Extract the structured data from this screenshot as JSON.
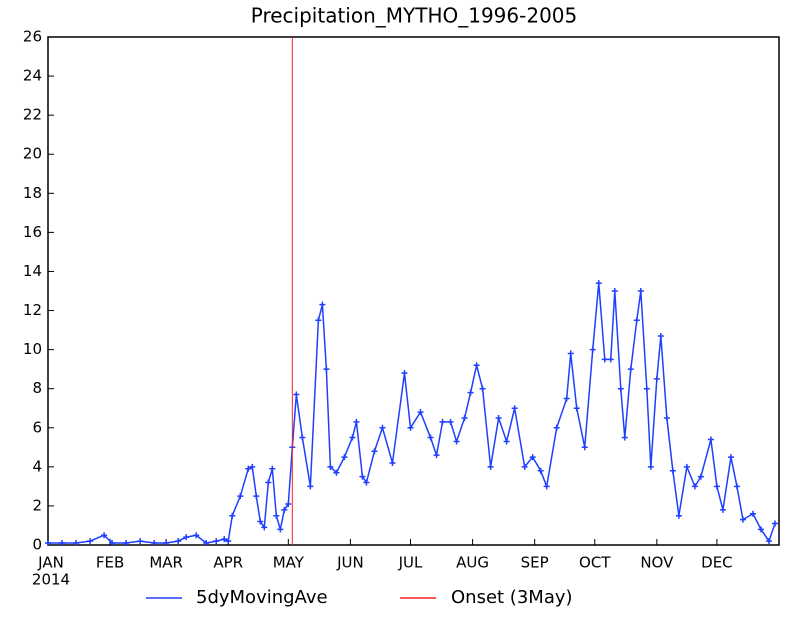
{
  "chart_data": {
    "type": "line",
    "title": "Precipitation_MYTHO_1996-2005",
    "year_label": "2014",
    "xlim": [
      1,
      366
    ],
    "xticks": [
      {
        "value": 1,
        "label": "JAN"
      },
      {
        "value": 32,
        "label": "FEB"
      },
      {
        "value": 60,
        "label": "MAR"
      },
      {
        "value": 91,
        "label": "APR"
      },
      {
        "value": 121,
        "label": "MAY"
      },
      {
        "value": 152,
        "label": "JUN"
      },
      {
        "value": 182,
        "label": "JUL"
      },
      {
        "value": 213,
        "label": "AUG"
      },
      {
        "value": 244,
        "label": "SEP"
      },
      {
        "value": 274,
        "label": "OCT"
      },
      {
        "value": 305,
        "label": "NOV"
      },
      {
        "value": 335,
        "label": "DEC"
      }
    ],
    "ylim": [
      0,
      26
    ],
    "yticks": [
      0,
      2,
      4,
      6,
      8,
      10,
      12,
      14,
      16,
      18,
      20,
      22,
      24,
      26
    ],
    "x": [
      1,
      8,
      15,
      22,
      29,
      33,
      40,
      47,
      54,
      60,
      66,
      70,
      75,
      80,
      85,
      89,
      91,
      93,
      97,
      101,
      103,
      105,
      107,
      109,
      111,
      113,
      115,
      117,
      119,
      121,
      123,
      125,
      128,
      132,
      136,
      138,
      140,
      142,
      145,
      149,
      153,
      155,
      158,
      160,
      164,
      168,
      173,
      179,
      182,
      187,
      192,
      195,
      198,
      202,
      205,
      209,
      212,
      215,
      218,
      222,
      226,
      230,
      234,
      239,
      243,
      247,
      250,
      255,
      260,
      262,
      265,
      269,
      273,
      276,
      279,
      282,
      284,
      287,
      289,
      292,
      295,
      297,
      300,
      302,
      305,
      307,
      310,
      313,
      316,
      320,
      324,
      327,
      332,
      335,
      338,
      342,
      345,
      348,
      353,
      357,
      361,
      364
    ],
    "series": [
      {
        "name": "5dyMovingAve",
        "color": "#1f3fff",
        "values": [
          0.1,
          0.1,
          0.1,
          0.2,
          0.5,
          0.1,
          0.1,
          0.2,
          0.1,
          0.1,
          0.2,
          0.4,
          0.5,
          0.1,
          0.2,
          0.3,
          0.2,
          1.5,
          2.5,
          3.9,
          4.0,
          2.5,
          1.2,
          0.9,
          3.2,
          3.9,
          1.5,
          0.8,
          1.8,
          2.1,
          5.0,
          7.7,
          5.5,
          3.0,
          11.5,
          12.3,
          9.0,
          4.0,
          3.7,
          4.5,
          5.5,
          6.3,
          3.5,
          3.2,
          4.8,
          6.0,
          4.2,
          8.8,
          6.0,
          6.8,
          5.5,
          4.6,
          6.3,
          6.3,
          5.3,
          6.5,
          7.8,
          9.2,
          8.0,
          4.0,
          6.5,
          5.3,
          7.0,
          4.0,
          4.5,
          3.8,
          3.0,
          6.0,
          7.5,
          9.8,
          7.0,
          5.0,
          10.0,
          13.4,
          9.5,
          9.5,
          13.0,
          8.0,
          5.5,
          9.0,
          11.5,
          13.0,
          8.0,
          4.0,
          8.5,
          10.7,
          6.5,
          3.8,
          1.5,
          4.0,
          3.0,
          3.5,
          5.4,
          3.0,
          1.8,
          4.5,
          3.0,
          1.3,
          1.6,
          0.8,
          0.2,
          1.1
        ]
      }
    ],
    "onset": {
      "name": "Onset (3May)",
      "x": 123,
      "color": "#ff2020"
    }
  }
}
